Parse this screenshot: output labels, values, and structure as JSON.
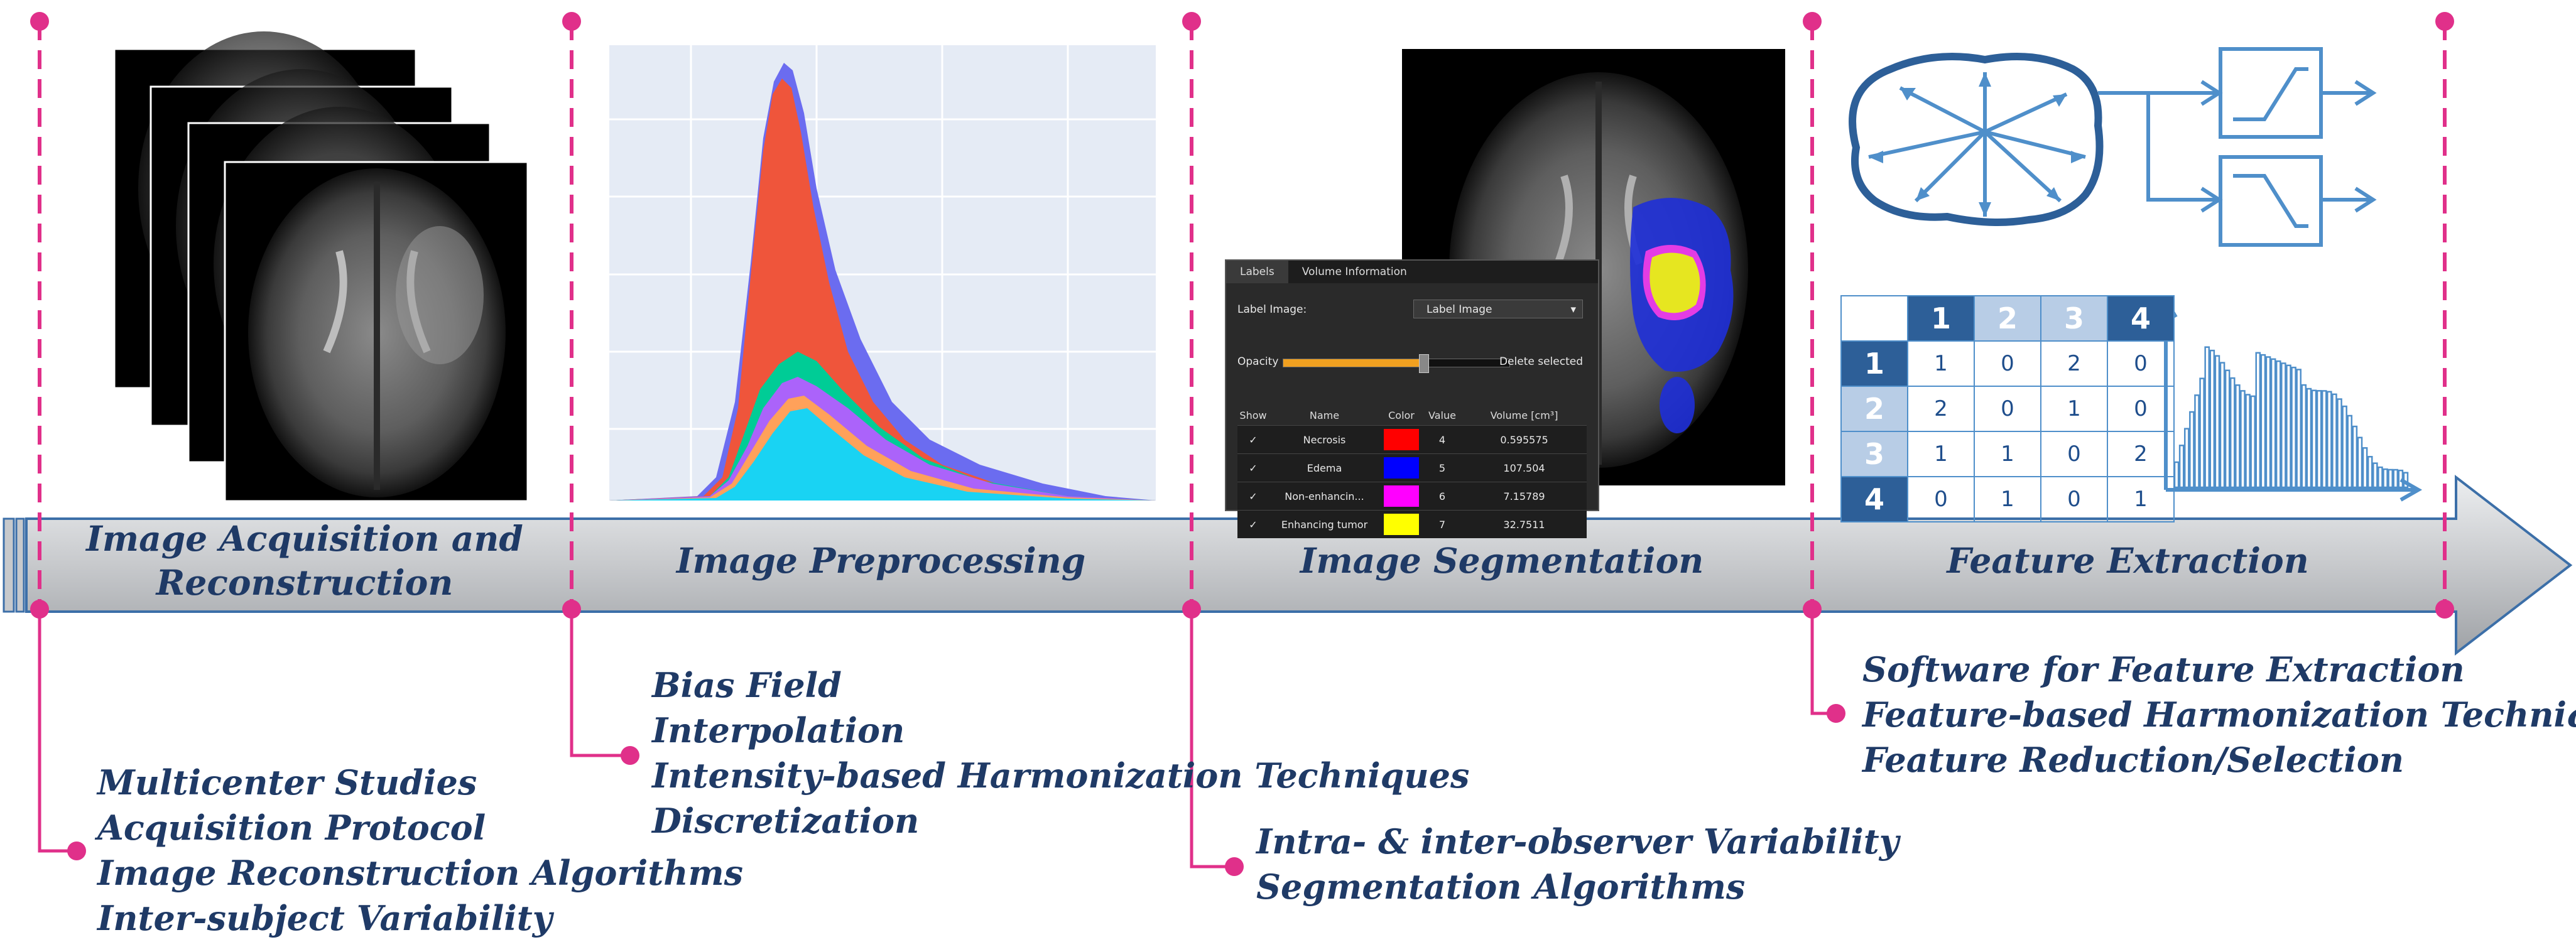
{
  "colors": {
    "pink": "#e0308a",
    "navy": "#1f3a66",
    "arrow_fill": "#c7c9cc",
    "diagram_blue": "#4f8fca",
    "table_dark": "#2d5f98",
    "table_light": "#b8cde6"
  },
  "stages": [
    {
      "label": "Image Acquisition and Reconstruction"
    },
    {
      "label": "Image Preprocessing"
    },
    {
      "label": "Image Segmentation"
    },
    {
      "label": "Feature Extraction"
    }
  ],
  "issues": {
    "acquisition": [
      "Multicenter Studies",
      "Acquisition Protocol",
      "Image Reconstruction Algorithms",
      "Inter-subject Variability"
    ],
    "preprocessing": [
      "Bias Field",
      "Interpolation",
      "Intensity-based Harmonization Techniques",
      "Discretization"
    ],
    "segmentation": [
      "Intra- & inter-observer Variability",
      "Segmentation Algorithms"
    ],
    "feature": [
      "Software for Feature Extraction",
      "Feature-based Harmonization Techniques",
      "Feature Reduction/Selection"
    ]
  },
  "segmentation_panel": {
    "tabs": [
      "Labels",
      "Volume Information"
    ],
    "label_image_caption": "Label Image:",
    "label_image_value": "Label Image",
    "opacity_label": "Opacity",
    "delete_label": "Delete selected",
    "opacity_level": 0.62,
    "columns": [
      "Show",
      "Name",
      "Color",
      "Value",
      "Volume [cm³]"
    ],
    "rows": [
      {
        "show": "✓",
        "name": "Necrosis",
        "color": "#ff0000",
        "value": "4",
        "volume": "0.595575"
      },
      {
        "show": "✓",
        "name": "Edema",
        "color": "#0000ff",
        "value": "5",
        "volume": "107.504"
      },
      {
        "show": "✓",
        "name": "Non-enhancin...",
        "color": "#ff00ff",
        "value": "6",
        "volume": "7.15789"
      },
      {
        "show": "✓",
        "name": "Enhancing tumor",
        "color": "#ffff00",
        "value": "7",
        "volume": "32.7511"
      }
    ]
  },
  "glcm": {
    "headers": [
      "1",
      "2",
      "3",
      "4"
    ],
    "rows": [
      [
        "1",
        "0",
        "2",
        "0"
      ],
      [
        "2",
        "0",
        "1",
        "0"
      ],
      [
        "1",
        "1",
        "0",
        "2"
      ],
      [
        "0",
        "1",
        "0",
        "1"
      ]
    ]
  },
  "icons": {
    "mri_stack": "mri-slice-stack-icon",
    "histogram": "intensity-histogram-icon",
    "brain_seg": "segmented-brain-icon",
    "roi": "roi-outline-icon",
    "filters": "filter-bank-icon",
    "feature_histogram": "feature-histogram-icon"
  }
}
